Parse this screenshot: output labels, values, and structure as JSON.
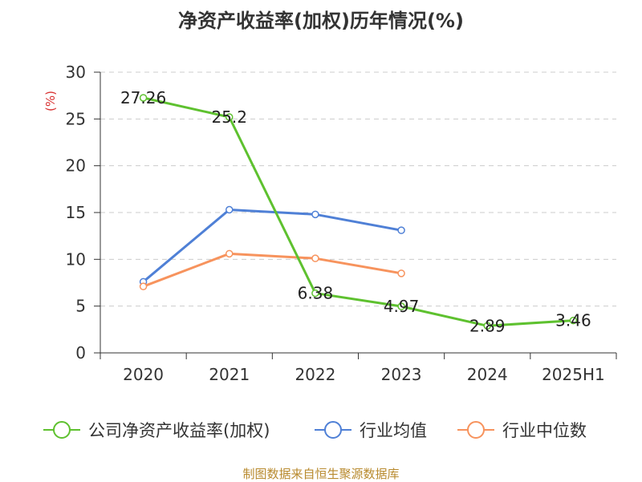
{
  "title": "净资产收益率(加权)历年情况(%)",
  "source": "制图数据来自恒生聚源数据库",
  "chart_data": {
    "type": "line",
    "title": "净资产收益率(加权)历年情况(%)",
    "ylabel": "(%)",
    "ylim": [
      0,
      30
    ],
    "yticks": [
      0,
      5,
      10,
      15,
      20,
      25,
      30
    ],
    "categories": [
      "2020",
      "2021",
      "2022",
      "2023",
      "2024",
      "2025H1"
    ],
    "grid": true,
    "legend_position": "bottom",
    "series": [
      {
        "name": "公司净资产收益率(加权)",
        "color": "#5ec12f",
        "values": [
          27.26,
          25.2,
          6.38,
          4.97,
          2.89,
          3.46
        ],
        "labels": [
          "27.26",
          "25.2",
          "6.38",
          "4.97",
          "2.89",
          "3.46"
        ]
      },
      {
        "name": "行业均值",
        "color": "#4f80d6",
        "values": [
          7.6,
          15.3,
          14.8,
          13.1,
          null,
          null
        ]
      },
      {
        "name": "行业中位数",
        "color": "#f7935d",
        "values": [
          7.1,
          10.6,
          10.1,
          8.5,
          null,
          null
        ]
      }
    ]
  }
}
